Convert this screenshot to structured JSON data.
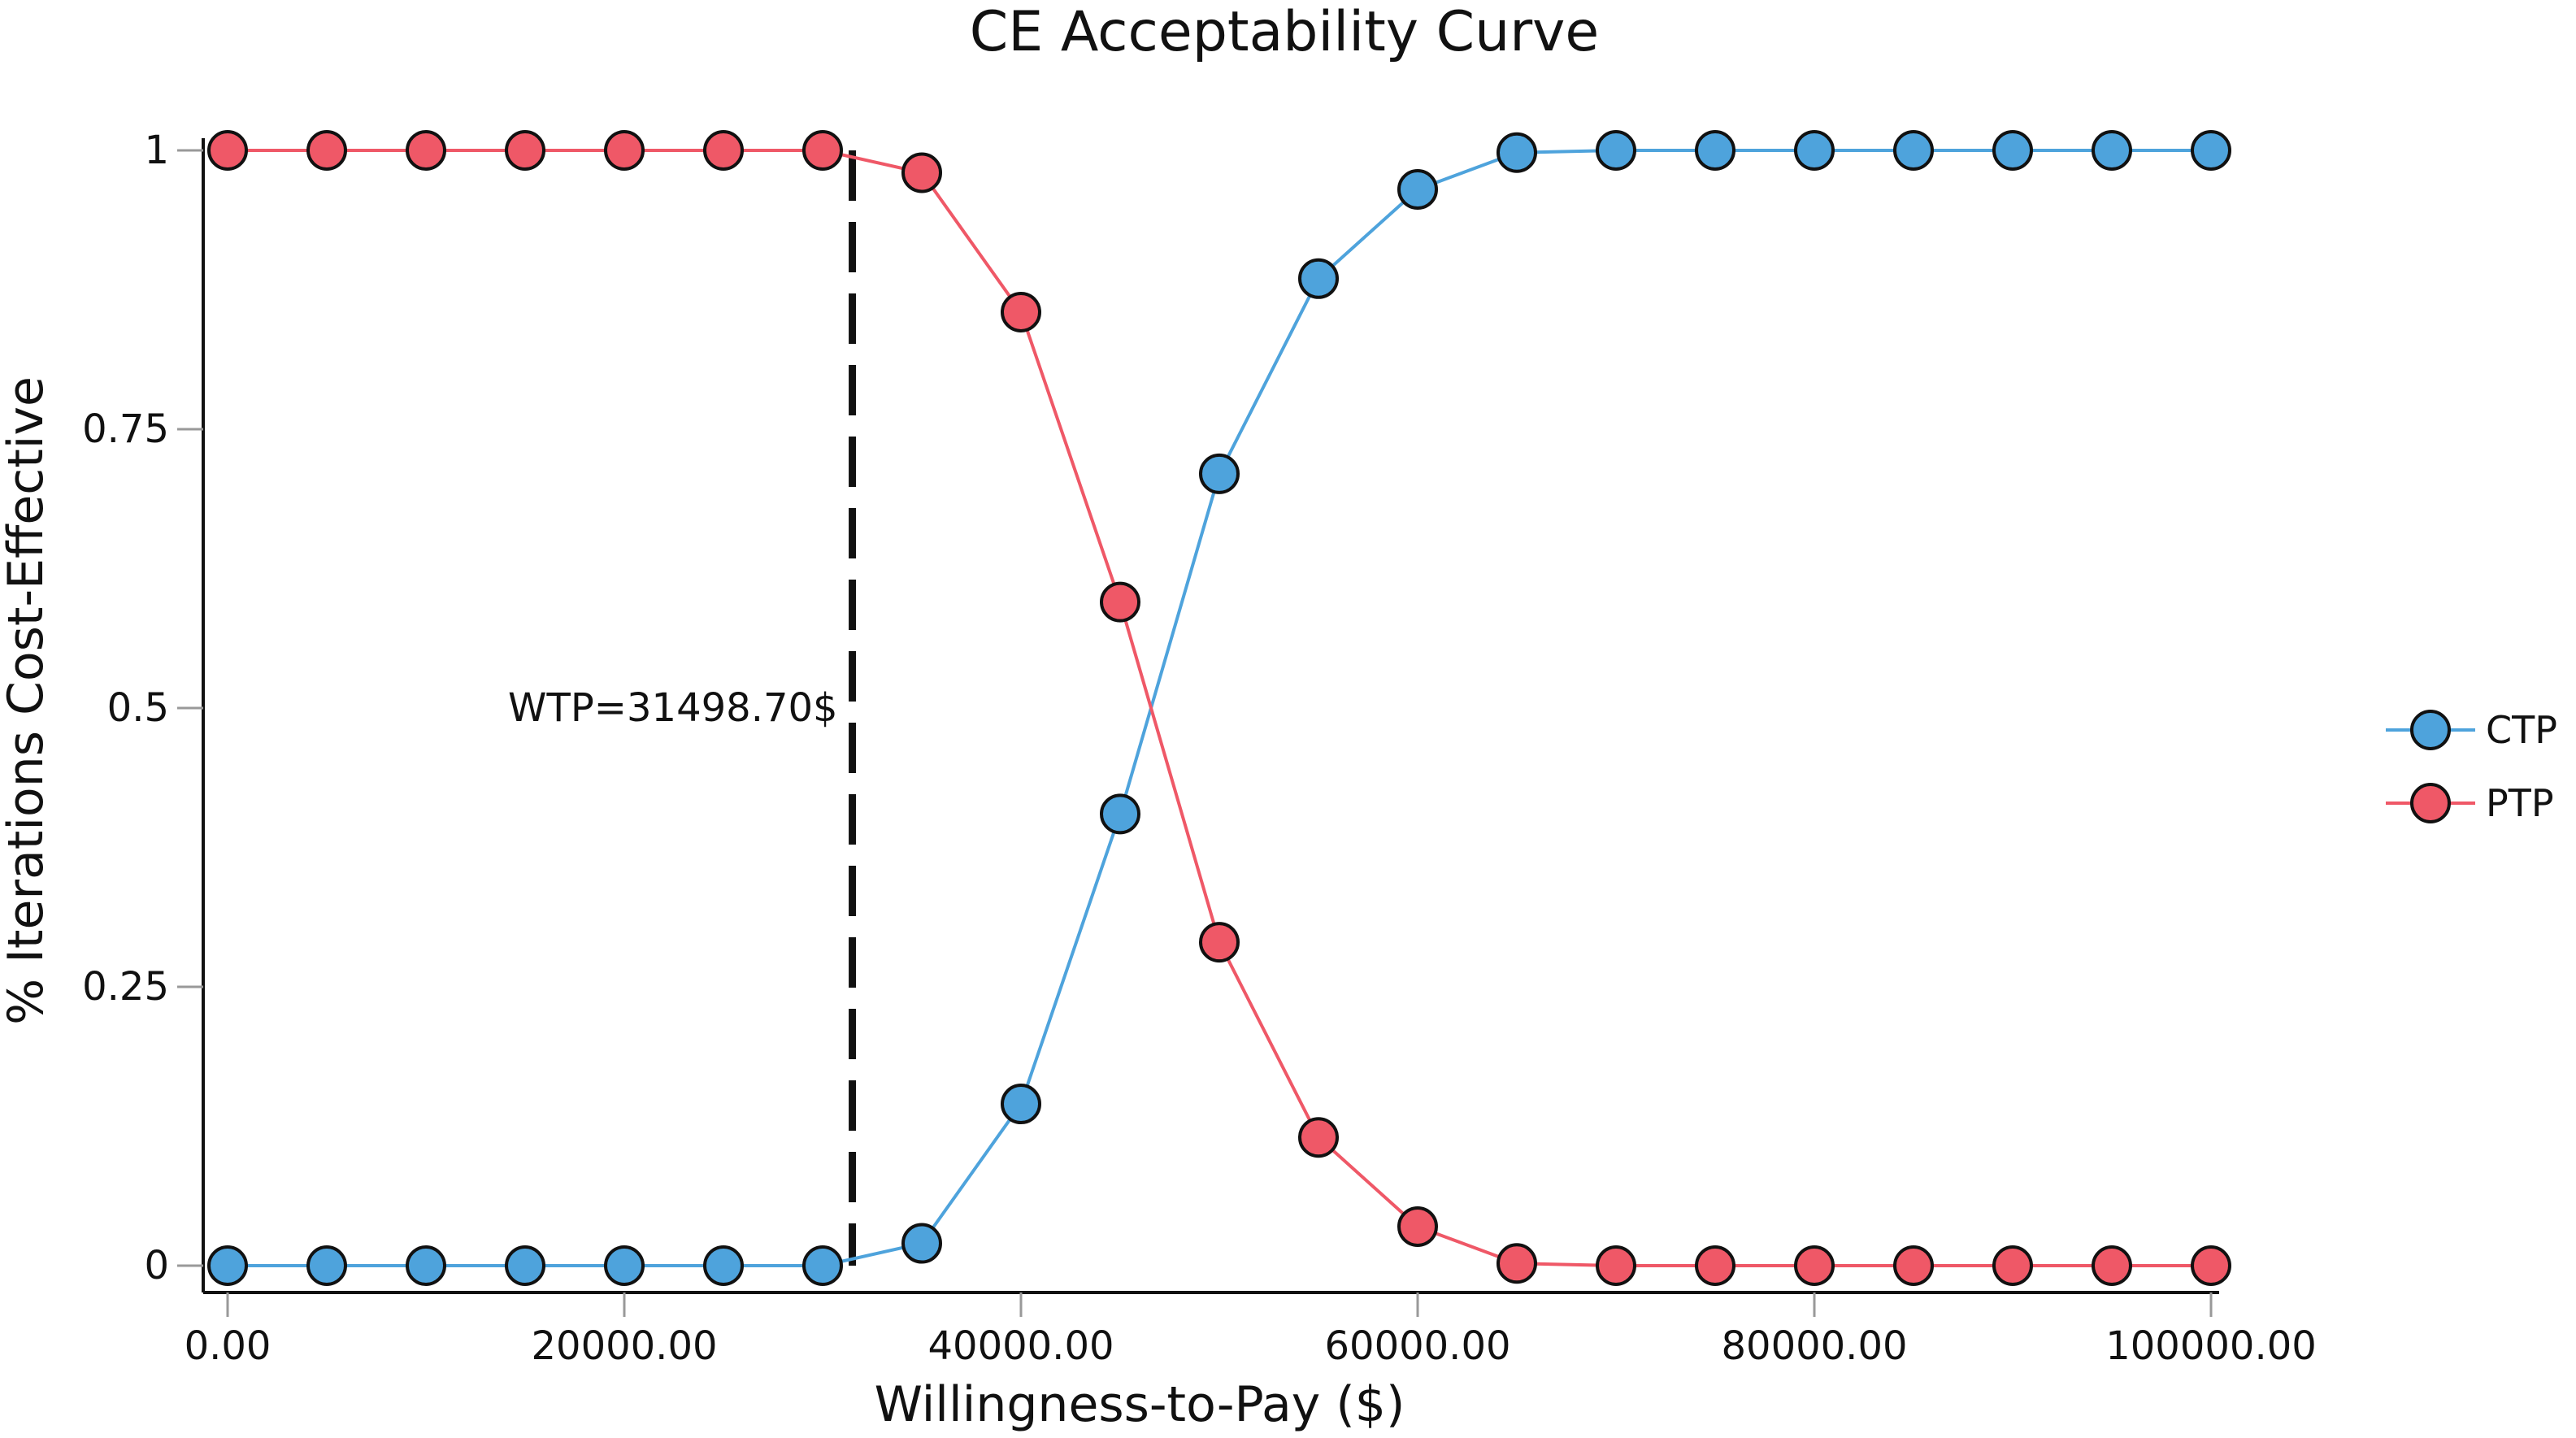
{
  "chart_data": {
    "type": "line",
    "title": "CE Acceptability Curve",
    "xlabel": "Willingness-to-Pay ($)",
    "ylabel": "% Iterations Cost-Effective",
    "xlim": [
      0,
      100000
    ],
    "ylim": [
      0,
      1
    ],
    "x_ticks": [
      {
        "value": 0,
        "label": "0.00"
      },
      {
        "value": 20000,
        "label": "20000.00"
      },
      {
        "value": 40000,
        "label": "40000.00"
      },
      {
        "value": 60000,
        "label": "60000.00"
      },
      {
        "value": 80000,
        "label": "80000.00"
      },
      {
        "value": 100000,
        "label": "100000.00"
      }
    ],
    "y_ticks": [
      {
        "value": 0,
        "label": "0"
      },
      {
        "value": 0.25,
        "label": "0.25"
      },
      {
        "value": 0.5,
        "label": "0.5"
      },
      {
        "value": 0.75,
        "label": "0.75"
      },
      {
        "value": 1,
        "label": "1"
      }
    ],
    "x": [
      0,
      5000,
      10000,
      15000,
      20000,
      25000,
      30000,
      35000,
      40000,
      45000,
      50000,
      55000,
      60000,
      65000,
      70000,
      75000,
      80000,
      85000,
      90000,
      95000,
      100000
    ],
    "series": [
      {
        "name": "CTP",
        "color": "#4ea3dc",
        "values": [
          0,
          0,
          0,
          0,
          0,
          0,
          0,
          0.02,
          0.145,
          0.405,
          0.71,
          0.885,
          0.965,
          0.998,
          1,
          1,
          1,
          1,
          1,
          1,
          1
        ]
      },
      {
        "name": "PTP",
        "color": "#ef5867",
        "values": [
          1,
          1,
          1,
          1,
          1,
          1,
          1,
          0.98,
          0.855,
          0.595,
          0.29,
          0.115,
          0.035,
          0.002,
          0,
          0,
          0,
          0,
          0,
          0,
          0
        ]
      }
    ],
    "threshold": {
      "x": 31498.7,
      "label": "WTP=31498.70$"
    },
    "legend_position": "right"
  }
}
